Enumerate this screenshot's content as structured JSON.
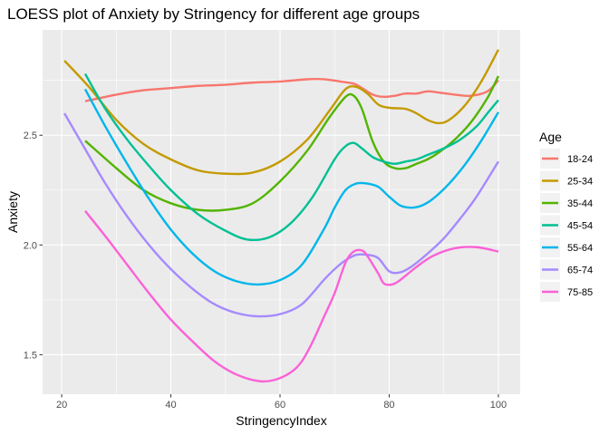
{
  "chart_data": {
    "type": "line",
    "title": "LOESS plot of Anxiety by Stringency for different age groups",
    "xlabel": "StringencyIndex",
    "ylabel": "Anxiety",
    "xlim": [
      16.5,
      104
    ],
    "ylim": [
      1.32,
      2.98
    ],
    "xticks": [
      20,
      40,
      60,
      80,
      100
    ],
    "yticks": [
      1.5,
      2.0,
      2.5
    ],
    "xtick_labels": [
      "20",
      "40",
      "60",
      "80",
      "100"
    ],
    "ytick_labels": [
      "1.5",
      "2.0",
      "2.5"
    ],
    "grid": true,
    "legend": {
      "title": "Age",
      "position": "right"
    },
    "series": [
      {
        "name": "18-24",
        "color": "#F8766D",
        "x": [
          24.3,
          30,
          35,
          40,
          45,
          50,
          55,
          60,
          65,
          68,
          71,
          73.5,
          75,
          77,
          79,
          81,
          83,
          85,
          87,
          89,
          92,
          95,
          98,
          100
        ],
        "y": [
          2.655,
          2.685,
          2.705,
          2.715,
          2.725,
          2.73,
          2.74,
          2.745,
          2.755,
          2.755,
          2.745,
          2.735,
          2.715,
          2.685,
          2.675,
          2.68,
          2.69,
          2.69,
          2.7,
          2.695,
          2.685,
          2.68,
          2.7,
          2.75
        ]
      },
      {
        "name": "25-34",
        "color": "#C49A00",
        "x": [
          20.5,
          25,
          30,
          35,
          40,
          45,
          50,
          55,
          60,
          65,
          69,
          72,
          74,
          76,
          78,
          80,
          83,
          85,
          87,
          89,
          91,
          94,
          97,
          100
        ],
        "y": [
          2.84,
          2.72,
          2.57,
          2.46,
          2.39,
          2.34,
          2.325,
          2.33,
          2.38,
          2.48,
          2.61,
          2.71,
          2.72,
          2.69,
          2.64,
          2.625,
          2.62,
          2.6,
          2.57,
          2.555,
          2.57,
          2.64,
          2.75,
          2.89
        ]
      },
      {
        "name": "35-44",
        "color": "#53B400",
        "x": [
          24.3,
          30,
          35,
          40,
          45,
          50,
          55,
          60,
          65,
          69,
          72,
          73.5,
          75,
          77,
          79,
          81,
          83,
          85,
          87,
          89,
          92,
          95,
          98,
          100
        ],
        "y": [
          2.475,
          2.35,
          2.25,
          2.19,
          2.16,
          2.16,
          2.19,
          2.29,
          2.43,
          2.58,
          2.675,
          2.68,
          2.62,
          2.47,
          2.38,
          2.35,
          2.35,
          2.37,
          2.39,
          2.42,
          2.48,
          2.56,
          2.67,
          2.77
        ]
      },
      {
        "name": "45-54",
        "color": "#00C094",
        "x": [
          24.3,
          28,
          32,
          36,
          40,
          45,
          50,
          54,
          58,
          62,
          66,
          70,
          72,
          73.5,
          75,
          77,
          79,
          81,
          83,
          85,
          87,
          90,
          93,
          96,
          98,
          100
        ],
        "y": [
          2.78,
          2.62,
          2.48,
          2.36,
          2.25,
          2.14,
          2.065,
          2.025,
          2.035,
          2.1,
          2.22,
          2.39,
          2.45,
          2.465,
          2.44,
          2.4,
          2.38,
          2.37,
          2.38,
          2.39,
          2.41,
          2.44,
          2.48,
          2.54,
          2.6,
          2.66
        ]
      },
      {
        "name": "55-64",
        "color": "#00B6EB",
        "x": [
          24.3,
          28,
          32,
          36,
          40,
          44,
          48,
          52,
          56,
          60,
          64,
          68,
          70,
          72,
          74,
          76,
          78,
          80,
          82,
          84,
          86,
          88,
          91,
          94,
          97,
          100
        ],
        "y": [
          2.71,
          2.54,
          2.37,
          2.21,
          2.07,
          1.96,
          1.88,
          1.835,
          1.82,
          1.84,
          1.91,
          2.07,
          2.17,
          2.25,
          2.28,
          2.28,
          2.265,
          2.22,
          2.18,
          2.17,
          2.18,
          2.21,
          2.28,
          2.37,
          2.48,
          2.605
        ]
      },
      {
        "name": "65-74",
        "color": "#A58AFF",
        "x": [
          20.5,
          24,
          28,
          32,
          36,
          40,
          44,
          48,
          52,
          56,
          60,
          64,
          68,
          70,
          72,
          74,
          76,
          78,
          80,
          82,
          84,
          87,
          90,
          93,
          96,
          100
        ],
        "y": [
          2.6,
          2.45,
          2.28,
          2.13,
          2.0,
          1.89,
          1.8,
          1.73,
          1.69,
          1.675,
          1.685,
          1.73,
          1.84,
          1.89,
          1.93,
          1.955,
          1.955,
          1.94,
          1.88,
          1.875,
          1.9,
          1.96,
          2.03,
          2.12,
          2.22,
          2.38
        ]
      },
      {
        "name": "75-85",
        "color": "#FB61D7",
        "x": [
          24.3,
          28,
          32,
          36,
          40,
          44,
          48,
          52,
          56,
          59,
          62,
          64,
          66,
          68,
          70,
          72,
          73.5,
          75,
          76,
          78,
          79,
          80.5,
          82,
          85,
          88,
          92,
          96,
          100
        ],
        "y": [
          2.155,
          2.04,
          1.91,
          1.78,
          1.66,
          1.56,
          1.47,
          1.41,
          1.38,
          1.385,
          1.42,
          1.47,
          1.56,
          1.67,
          1.78,
          1.92,
          1.97,
          1.975,
          1.95,
          1.87,
          1.825,
          1.82,
          1.84,
          1.9,
          1.95,
          1.985,
          1.99,
          1.97
        ]
      }
    ]
  }
}
